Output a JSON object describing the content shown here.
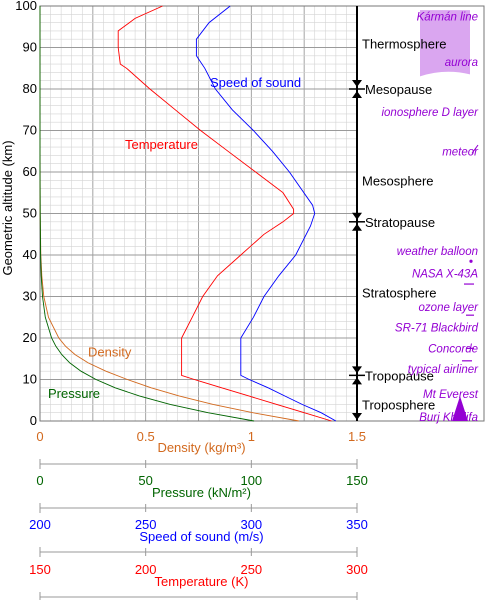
{
  "chart_data": {
    "type": "line",
    "ylabel": "Geometric altitude (km)",
    "ylim": [
      0,
      100
    ],
    "yticks": [
      "0",
      "10",
      "20",
      "30",
      "40",
      "50",
      "60",
      "70",
      "80",
      "90",
      "100"
    ],
    "grid": true,
    "colors": {
      "density": "#d2691e",
      "pressure": "#006400",
      "speed": "#0000ff",
      "temperature": "#ff0000",
      "events": "#9400d3",
      "axis": "#000000"
    },
    "series": [
      {
        "name": "Temperature",
        "key": "temperature",
        "units": "K",
        "x": [
          288,
          275,
          262,
          249,
          236,
          223,
          217,
          217,
          217,
          217,
          217,
          222,
          227,
          234,
          245,
          256,
          265,
          270,
          270,
          265,
          252,
          239,
          226,
          214,
          202,
          191,
          188,
          187,
          187,
          195,
          208
        ],
        "y": [
          0,
          2,
          4,
          6,
          8,
          10,
          11,
          13,
          16,
          19,
          20,
          25,
          30,
          35,
          40,
          45,
          48,
          50,
          51,
          55,
          60,
          65,
          70,
          75,
          80,
          85,
          86,
          90,
          94,
          97,
          100
        ]
      },
      {
        "name": "Speed of sound",
        "key": "speed",
        "units": "m/s",
        "x": [
          340,
          333,
          324,
          316,
          308,
          299,
          295,
          295,
          295,
          301,
          306,
          313,
          321,
          328,
          330,
          329,
          318,
          310,
          301,
          291,
          283,
          278,
          274,
          274,
          280,
          290
        ],
        "y": [
          0,
          2,
          4,
          6,
          8,
          10,
          11,
          15,
          20,
          25,
          30,
          35,
          40,
          47,
          50,
          52,
          60,
          65,
          70,
          75,
          80,
          85,
          88,
          92,
          96,
          100
        ]
      },
      {
        "name": "Density",
        "key": "density",
        "units": "kg/m³",
        "x": [
          1.225,
          1.007,
          0.819,
          0.66,
          0.526,
          0.413,
          0.312,
          0.228,
          0.166,
          0.121,
          0.0889,
          0.0401,
          0.018,
          0.0084,
          0.004,
          0.001,
          0.0003,
          8e-05,
          2e-05,
          0.0
        ],
        "y": [
          0,
          2,
          4,
          6,
          8,
          10,
          12,
          14,
          16,
          18,
          20,
          25,
          30,
          35,
          40,
          50,
          60,
          70,
          80,
          100
        ]
      },
      {
        "name": "Pressure",
        "key": "pressure",
        "units": "kN/m²",
        "x": [
          101.3,
          79.5,
          61.6,
          47.2,
          35.6,
          26.5,
          19.4,
          14.1,
          10.3,
          7.5,
          5.5,
          2.5,
          1.2,
          0.57,
          0.29,
          0.08,
          0.02,
          0.005,
          0.001,
          0.0
        ],
        "y": [
          0,
          2,
          4,
          6,
          8,
          10,
          12,
          14,
          16,
          18,
          20,
          25,
          30,
          35,
          40,
          50,
          60,
          70,
          80,
          100
        ]
      }
    ],
    "series_labels": {
      "temperature": "Temperature",
      "speed": "Speed of sound",
      "density": "Density",
      "pressure": "Pressure"
    },
    "x_axes": [
      {
        "key": "density",
        "label": "Density (kg/m³)",
        "min": 0,
        "max": 1.5,
        "ticks": [
          0,
          0.5,
          1,
          1.5
        ],
        "tick_labels": [
          "0",
          "0.5",
          "1",
          "1.5"
        ]
      },
      {
        "key": "pressure",
        "label": "Pressure (kN/m²)",
        "min": 0,
        "max": 150,
        "ticks": [
          0,
          50,
          100,
          150
        ],
        "tick_labels": [
          "0",
          "50",
          "100",
          "150"
        ]
      },
      {
        "key": "speed",
        "label": "Speed of sound (m/s)",
        "min": 200,
        "max": 350,
        "ticks": [
          200,
          250,
          300,
          350
        ],
        "tick_labels": [
          "200",
          "250",
          "300",
          "350"
        ]
      },
      {
        "key": "temperature",
        "label": "Temperature (K)",
        "min": 150,
        "max": 300,
        "ticks": [
          150,
          200,
          250,
          300
        ],
        "tick_labels": [
          "150",
          "200",
          "250",
          "300"
        ]
      }
    ],
    "layers": [
      {
        "name": "Thermosphere",
        "altitude": 91
      },
      {
        "name": "Mesosphere",
        "altitude": 58
      },
      {
        "name": "Stratosphere",
        "altitude": 31
      },
      {
        "name": "Troposphere",
        "altitude": 4
      }
    ],
    "boundaries": [
      {
        "name": "Mesopause",
        "altitude": 80
      },
      {
        "name": "Stratopause",
        "altitude": 48
      },
      {
        "name": "Tropopause",
        "altitude": 11
      }
    ],
    "events": [
      {
        "name": "Kármán line",
        "altitude": 97.5
      },
      {
        "name": "aurora",
        "altitude": 86.5
      },
      {
        "name": "ionosphere D layer",
        "altitude": 74.5
      },
      {
        "name": "meteor",
        "altitude": 65
      },
      {
        "name": "weather balloon",
        "altitude": 41
      },
      {
        "name": "NASA X-43A",
        "altitude": 35.5
      },
      {
        "name": "ozone layer",
        "altitude": 27.5
      },
      {
        "name": "SR-71 Blackbird",
        "altitude": 22.5
      },
      {
        "name": "Concorde",
        "altitude": 17.5
      },
      {
        "name": "typical airliner",
        "altitude": 12.5
      },
      {
        "name": "Mt Everest",
        "altitude": 6.5
      },
      {
        "name": "Burj Khalifa",
        "altitude": 1
      }
    ]
  }
}
